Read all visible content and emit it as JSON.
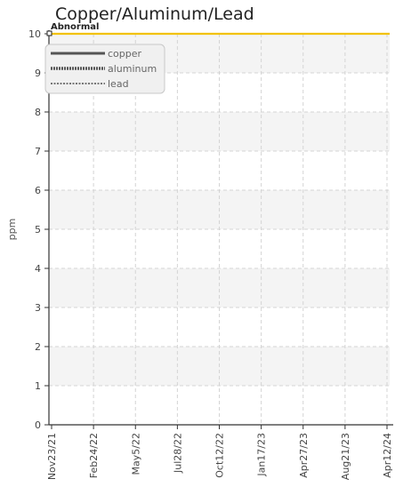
{
  "chart_data": {
    "type": "line",
    "title": "Copper/Aluminum/Lead",
    "ylabel": "ppm",
    "xlabel": "",
    "ylim": [
      0,
      10
    ],
    "yticks": [
      0,
      1,
      2,
      3,
      4,
      5,
      6,
      7,
      8,
      9,
      10
    ],
    "xlim": [
      "2021-11-23",
      "2024-04-12"
    ],
    "x_ticks": [
      "Nov23/21",
      "Feb24/22",
      "May5/22",
      "Jul28/22",
      "Oct12/22",
      "Jan17/23",
      "Apr27/23",
      "Aug21/23",
      "Apr12/24"
    ],
    "grid": true,
    "legend_position": "top-left",
    "series": [
      {
        "name": "copper",
        "style": "solid",
        "color": "#555555",
        "x": [],
        "y": []
      },
      {
        "name": "aluminum",
        "style": "dotted",
        "color": "#555555",
        "x": [],
        "y": []
      },
      {
        "name": "lead",
        "style": "dashed",
        "color": "#777777",
        "x": [],
        "y": []
      }
    ],
    "threshold": {
      "label": "Abnormal",
      "value": 10,
      "color": "#f2c200"
    }
  }
}
